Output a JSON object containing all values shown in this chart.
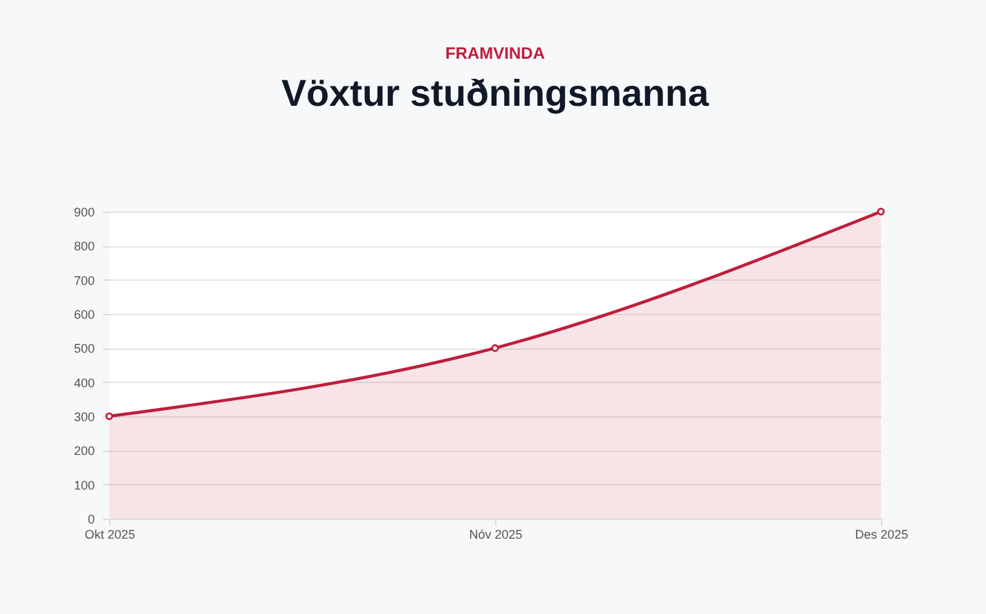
{
  "chart_data": {
    "type": "area",
    "subtitle": "FRAMVINDA",
    "title": "Vöxtur stuðningsmanna",
    "categories": [
      "Okt 2025",
      "Nóv 2025",
      "Des 2025"
    ],
    "series": [
      {
        "color": "#be1e3c",
        "values": [
          300,
          500,
          900
        ]
      }
    ],
    "ylim": [
      0,
      900
    ],
    "yticks": [
      0,
      100,
      200,
      300,
      400,
      500,
      600,
      700,
      800,
      900
    ],
    "grid": "y",
    "marker": "circle"
  }
}
